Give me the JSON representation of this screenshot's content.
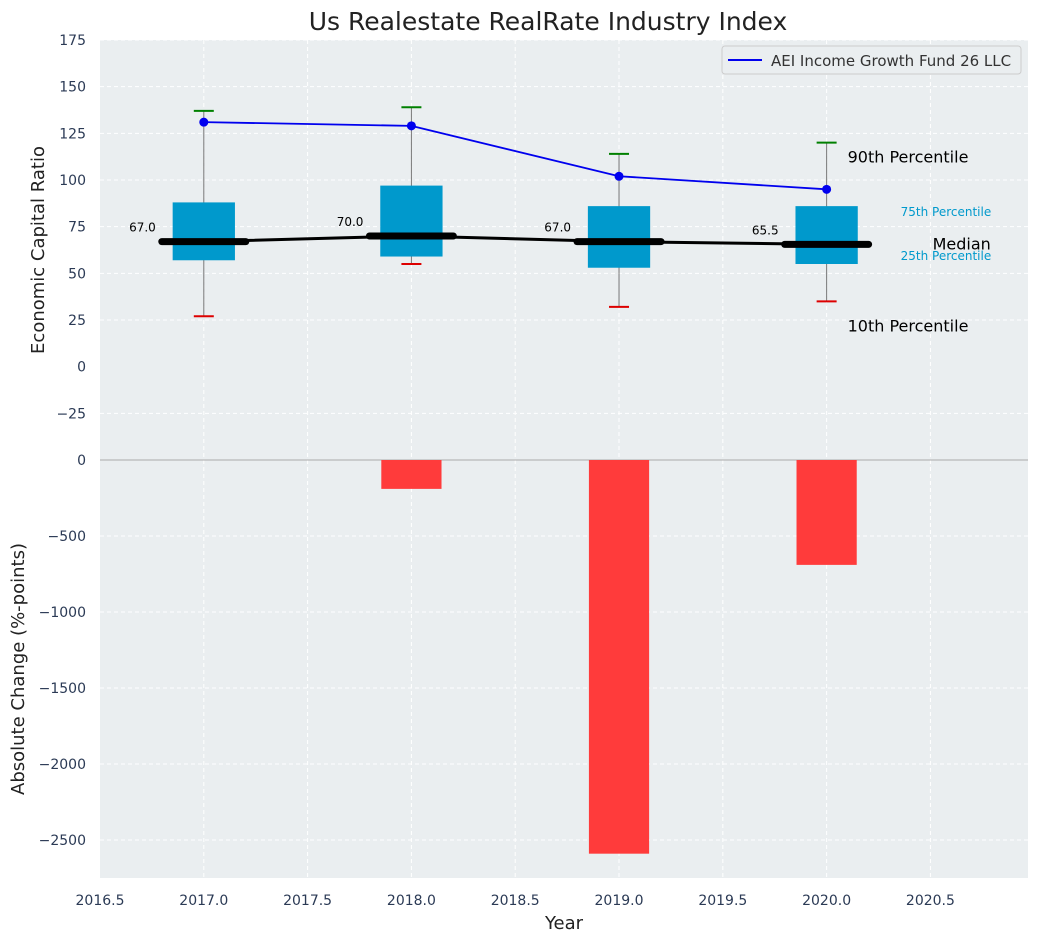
{
  "chart_data": [
    {
      "type": "box",
      "title": "Us Realestate RealRate Industry Index",
      "ylabel": "Economic Capital Ratio",
      "ylim": [
        -50,
        175
      ],
      "yticks": [
        175,
        150,
        125,
        100,
        75,
        50,
        25,
        0,
        -25
      ],
      "ytick_labels": [
        "175",
        "150",
        "125",
        "100",
        "75",
        "50",
        "25",
        "0",
        "−25"
      ],
      "x": [
        2017.0,
        2018.0,
        2019.0,
        2020.0
      ],
      "p10": [
        27,
        55,
        32,
        35
      ],
      "p25": [
        57,
        59,
        53,
        55
      ],
      "median": [
        67.0,
        70.0,
        67.0,
        65.5
      ],
      "median_labels": [
        "67.0",
        "70.0",
        "67.0",
        "65.5"
      ],
      "p75": [
        88,
        97,
        86,
        86
      ],
      "p90": [
        137,
        139,
        114,
        120
      ],
      "series": [
        {
          "name": "AEI Income Growth Fund 26 LLC",
          "values": [
            131,
            129,
            102,
            95
          ],
          "color": "#0000ee"
        }
      ],
      "legend_position": "top-right",
      "annotations": {
        "p90": "90th Percentile",
        "p75": "75th Percentile",
        "median": "Median",
        "p25": "25th Percentile",
        "p10": "10th Percentile"
      },
      "colors": {
        "box": "#0099cc",
        "median": "#000000",
        "whisker_high": "#008000",
        "whisker_low": "#dd0000",
        "percentile_text": "#0099cc"
      },
      "grid": true
    },
    {
      "type": "bar",
      "ylabel": "Absolute Change (%-points)",
      "xlabel": "Year",
      "ylim": [
        -2750,
        0
      ],
      "yticks": [
        0,
        -500,
        -1000,
        -1500,
        -2000,
        -2500
      ],
      "ytick_labels": [
        "0",
        "−500",
        "−1000",
        "−1500",
        "−2000",
        "−2500"
      ],
      "x": [
        2018.0,
        2019.0,
        2020.0
      ],
      "values": [
        -190,
        -2590,
        -690
      ],
      "xlim": [
        2016.5,
        2020.97
      ],
      "xticks": [
        2016.5,
        2017.0,
        2017.5,
        2018.0,
        2018.5,
        2019.0,
        2019.5,
        2020.0,
        2020.5
      ],
      "xtick_labels": [
        "2016.5",
        "2017.0",
        "2017.5",
        "2018.0",
        "2018.5",
        "2019.0",
        "2019.5",
        "2020.0",
        "2020.5"
      ],
      "colors": {
        "bar": "#ff3b3b"
      },
      "grid": true
    }
  ]
}
